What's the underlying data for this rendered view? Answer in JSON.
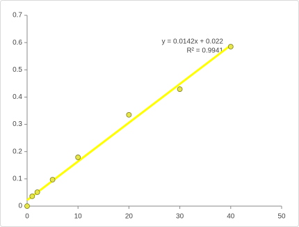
{
  "chart_data": {
    "type": "scatter",
    "x": [
      0,
      1,
      2,
      5,
      10,
      20,
      30,
      40
    ],
    "values": [
      0,
      0.036,
      0.051,
      0.097,
      0.179,
      0.335,
      0.429,
      0.585
    ],
    "color": "#e6e64a",
    "xlim": [
      0,
      50
    ],
    "xticks": [
      0,
      10,
      20,
      30,
      40,
      50
    ],
    "ylim": [
      0,
      0.7
    ],
    "yticks": [
      0,
      0.1,
      0.2,
      0.3,
      0.4,
      0.5,
      0.6,
      0.7
    ],
    "grid": false,
    "trendline": {
      "slope": 0.0142,
      "intercept": 0.022,
      "color": "#ffff00",
      "label": "y = 0.0142x + 0.022",
      "r2_label": "R² = 0.9941"
    }
  }
}
